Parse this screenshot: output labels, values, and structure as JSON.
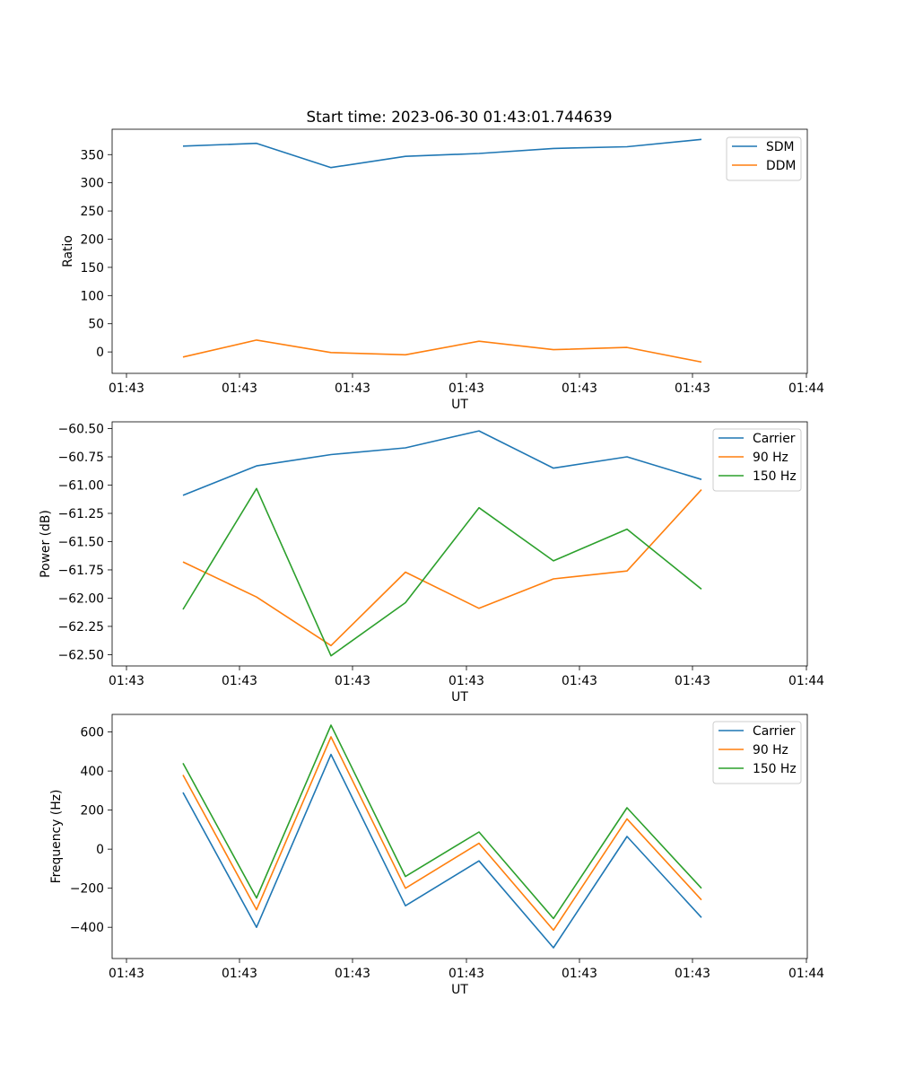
{
  "figure": {
    "title": "Start time: 2023-06-30 01:43:01.744639"
  },
  "colors": {
    "blue": "#1f77b4",
    "orange": "#ff7f0e",
    "green": "#2ca02c"
  },
  "chart_data": [
    {
      "type": "line",
      "xlabel": "UT",
      "ylabel": "Ratio",
      "xticks": [
        "01:43",
        "01:43",
        "01:43",
        "01:43",
        "01:43",
        "01:43",
        "01:44"
      ],
      "yticks": [
        "0",
        "50",
        "100",
        "150",
        "200",
        "250",
        "300",
        "350"
      ],
      "ylim": [
        -38,
        395
      ],
      "legend": "top-right",
      "grid": false,
      "series": [
        {
          "name": "SDM",
          "color": "blue",
          "values": [
            365,
            370,
            327,
            347,
            352,
            361,
            364,
            377
          ]
        },
        {
          "name": "DDM",
          "color": "orange",
          "values": [
            -9,
            21,
            -1,
            -5,
            19,
            4,
            8,
            -18
          ]
        }
      ]
    },
    {
      "type": "line",
      "xlabel": "UT",
      "ylabel": "Power (dB)",
      "xticks": [
        "01:43",
        "01:43",
        "01:43",
        "01:43",
        "01:43",
        "01:43",
        "01:44"
      ],
      "yticks": [
        "−62.50",
        "−62.25",
        "−62.00",
        "−61.75",
        "−61.50",
        "−61.25",
        "−61.00",
        "−60.75",
        "−60.50"
      ],
      "ylim": [
        -62.6,
        -60.44
      ],
      "legend": "top-right",
      "grid": false,
      "series": [
        {
          "name": "Carrier",
          "color": "blue",
          "values": [
            -61.09,
            -60.83,
            -60.73,
            -60.67,
            -60.52,
            -60.85,
            -60.75,
            -60.95
          ]
        },
        {
          "name": "90 Hz",
          "color": "orange",
          "values": [
            -61.68,
            -61.99,
            -62.42,
            -61.77,
            -62.09,
            -61.83,
            -61.76,
            -61.04
          ]
        },
        {
          "name": "150 Hz",
          "color": "green",
          "values": [
            -62.1,
            -61.03,
            -62.51,
            -62.04,
            -61.2,
            -61.67,
            -61.39,
            -61.92
          ]
        }
      ]
    },
    {
      "type": "line",
      "xlabel": "UT",
      "ylabel": "Frequency (Hz)",
      "xticks": [
        "01:43",
        "01:43",
        "01:43",
        "01:43",
        "01:43",
        "01:43",
        "01:44"
      ],
      "yticks": [
        "−400",
        "−200",
        "0",
        "200",
        "400",
        "600"
      ],
      "ylim": [
        -560,
        690
      ],
      "legend": "top-right",
      "grid": false,
      "series": [
        {
          "name": "Carrier",
          "color": "blue",
          "values": [
            290,
            -400,
            485,
            -290,
            -60,
            -505,
            65,
            -350
          ]
        },
        {
          "name": "90 Hz",
          "color": "orange",
          "values": [
            380,
            -310,
            575,
            -200,
            30,
            -415,
            155,
            -260
          ]
        },
        {
          "name": "150 Hz",
          "color": "green",
          "values": [
            440,
            -250,
            635,
            -140,
            88,
            -355,
            212,
            -200
          ]
        }
      ]
    }
  ]
}
